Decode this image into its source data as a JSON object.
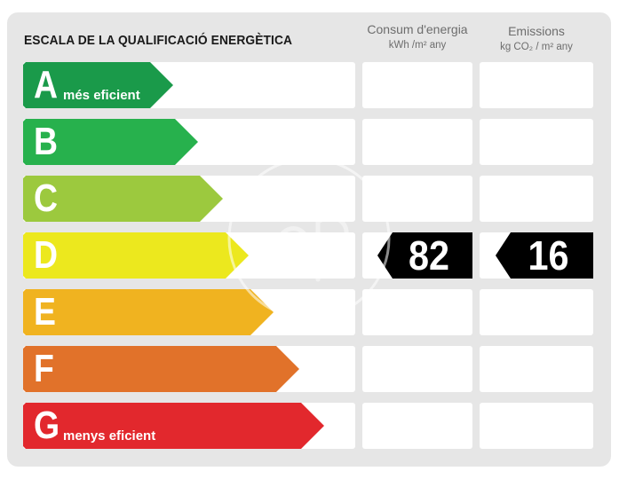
{
  "title": "ESCALA DE LA QUALIFICACIÓ ENERGÈTICA",
  "columns": {
    "consum": {
      "label": "Consum d'energia",
      "unit": "kWh /m² any"
    },
    "emissions": {
      "label": "Emissions",
      "unit": "kg CO₂ / m² any"
    }
  },
  "ratings": [
    {
      "letter": "A",
      "note": "més eficient",
      "color": "#1a9a4a"
    },
    {
      "letter": "B",
      "note": "",
      "color": "#27b14d"
    },
    {
      "letter": "C",
      "note": "",
      "color": "#9cc93e"
    },
    {
      "letter": "D",
      "note": "",
      "color": "#ece81e"
    },
    {
      "letter": "E",
      "note": "",
      "color": "#f0b320"
    },
    {
      "letter": "F",
      "note": "",
      "color": "#e1722a"
    },
    {
      "letter": "G",
      "note": "menys eficient",
      "color": "#e2282d"
    }
  ],
  "current": {
    "letter": "D",
    "consum_value": "82",
    "emissions_value": "16"
  }
}
